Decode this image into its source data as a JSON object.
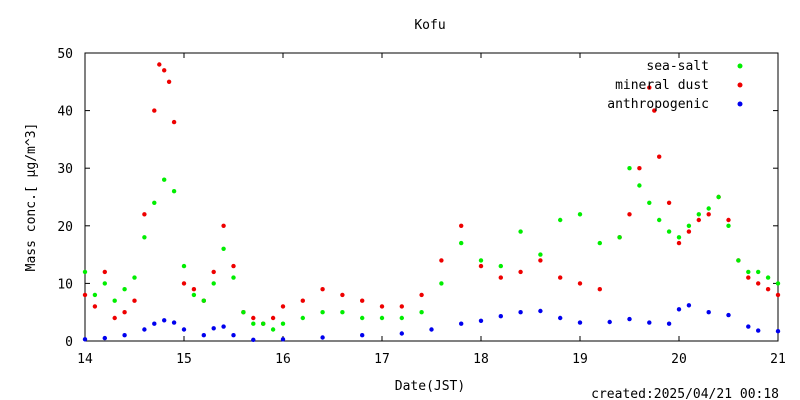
{
  "chart_data": {
    "type": "scatter",
    "title": "Kofu",
    "xlabel": "Date(JST)",
    "ylabel": "Mass conc.[ μg/m^3]",
    "xlim": [
      14,
      21
    ],
    "ylim": [
      0,
      50
    ],
    "x_ticks": [
      "14",
      "15",
      "16",
      "17",
      "18",
      "19",
      "20",
      "21"
    ],
    "y_ticks": [
      "0",
      "10",
      "20",
      "30",
      "40",
      "50"
    ],
    "legend_position": "top-right",
    "grid": false,
    "series": [
      {
        "name": "sea-salt",
        "color": "#00ee00",
        "x": [
          14.0,
          14.1,
          14.2,
          14.3,
          14.4,
          14.5,
          14.6,
          14.7,
          14.8,
          14.9,
          15.0,
          15.1,
          15.2,
          15.3,
          15.4,
          15.5,
          15.6,
          15.7,
          15.8,
          15.9,
          16.0,
          16.2,
          16.4,
          16.6,
          16.8,
          17.0,
          17.2,
          17.4,
          17.6,
          17.8,
          18.0,
          18.2,
          18.4,
          18.6,
          18.8,
          19.0,
          19.2,
          19.4,
          19.5,
          19.6,
          19.7,
          19.8,
          19.9,
          20.0,
          20.1,
          20.2,
          20.3,
          20.4,
          20.5,
          20.6,
          20.7,
          20.8,
          20.9,
          21.0
        ],
        "values": [
          12,
          8,
          10,
          7,
          9,
          11,
          18,
          24,
          28,
          26,
          13,
          8,
          7,
          10,
          16,
          11,
          5,
          3,
          3,
          2,
          3,
          4,
          5,
          5,
          4,
          4,
          4,
          5,
          10,
          17,
          14,
          13,
          19,
          15,
          21,
          22,
          17,
          18,
          30,
          27,
          24,
          21,
          19,
          18,
          20,
          22,
          23,
          25,
          20,
          14,
          12,
          12,
          11,
          10
        ]
      },
      {
        "name": "mineral dust",
        "color": "#ee0000",
        "x": [
          14.0,
          14.1,
          14.2,
          14.3,
          14.4,
          14.5,
          14.6,
          14.7,
          14.75,
          14.8,
          14.85,
          14.9,
          15.0,
          15.1,
          15.2,
          15.3,
          15.4,
          15.5,
          15.6,
          15.7,
          15.8,
          15.9,
          16.0,
          16.2,
          16.4,
          16.6,
          16.8,
          17.0,
          17.2,
          17.4,
          17.6,
          17.8,
          18.0,
          18.2,
          18.4,
          18.6,
          18.8,
          19.0,
          19.2,
          19.4,
          19.5,
          19.6,
          19.7,
          19.75,
          19.8,
          19.9,
          20.0,
          20.1,
          20.2,
          20.3,
          20.4,
          20.5,
          20.6,
          20.7,
          20.8,
          20.9,
          21.0
        ],
        "values": [
          8,
          6,
          12,
          4,
          5,
          7,
          22,
          40,
          48,
          47,
          45,
          38,
          10,
          9,
          7,
          12,
          20,
          13,
          5,
          4,
          3,
          4,
          6,
          7,
          9,
          8,
          7,
          6,
          6,
          8,
          14,
          20,
          13,
          11,
          12,
          14,
          11,
          10,
          9,
          18,
          22,
          30,
          44,
          40,
          32,
          24,
          17,
          19,
          21,
          22,
          25,
          21,
          14,
          11,
          10,
          9,
          8
        ]
      },
      {
        "name": "anthropogenic",
        "color": "#0000ee",
        "x": [
          14.0,
          14.2,
          14.4,
          14.6,
          14.7,
          14.8,
          14.9,
          15.0,
          15.2,
          15.3,
          15.4,
          15.5,
          15.7,
          16.0,
          16.4,
          16.8,
          17.2,
          17.5,
          17.8,
          18.0,
          18.2,
          18.4,
          18.6,
          18.8,
          19.0,
          19.3,
          19.5,
          19.7,
          19.9,
          20.0,
          20.1,
          20.3,
          20.5,
          20.7,
          20.8,
          21.0
        ],
        "values": [
          0.3,
          0.5,
          1.0,
          2.0,
          3.0,
          3.6,
          3.2,
          2.0,
          1.0,
          2.2,
          2.5,
          1.0,
          0.2,
          0.3,
          0.6,
          1.0,
          1.3,
          2.0,
          3.0,
          3.5,
          4.3,
          5.0,
          5.2,
          4.0,
          3.2,
          3.3,
          3.8,
          3.2,
          3.0,
          5.5,
          6.2,
          5.0,
          4.5,
          2.5,
          1.8,
          1.7
        ]
      }
    ]
  },
  "footer": {
    "created": "created:2025/04/21 00:18"
  }
}
